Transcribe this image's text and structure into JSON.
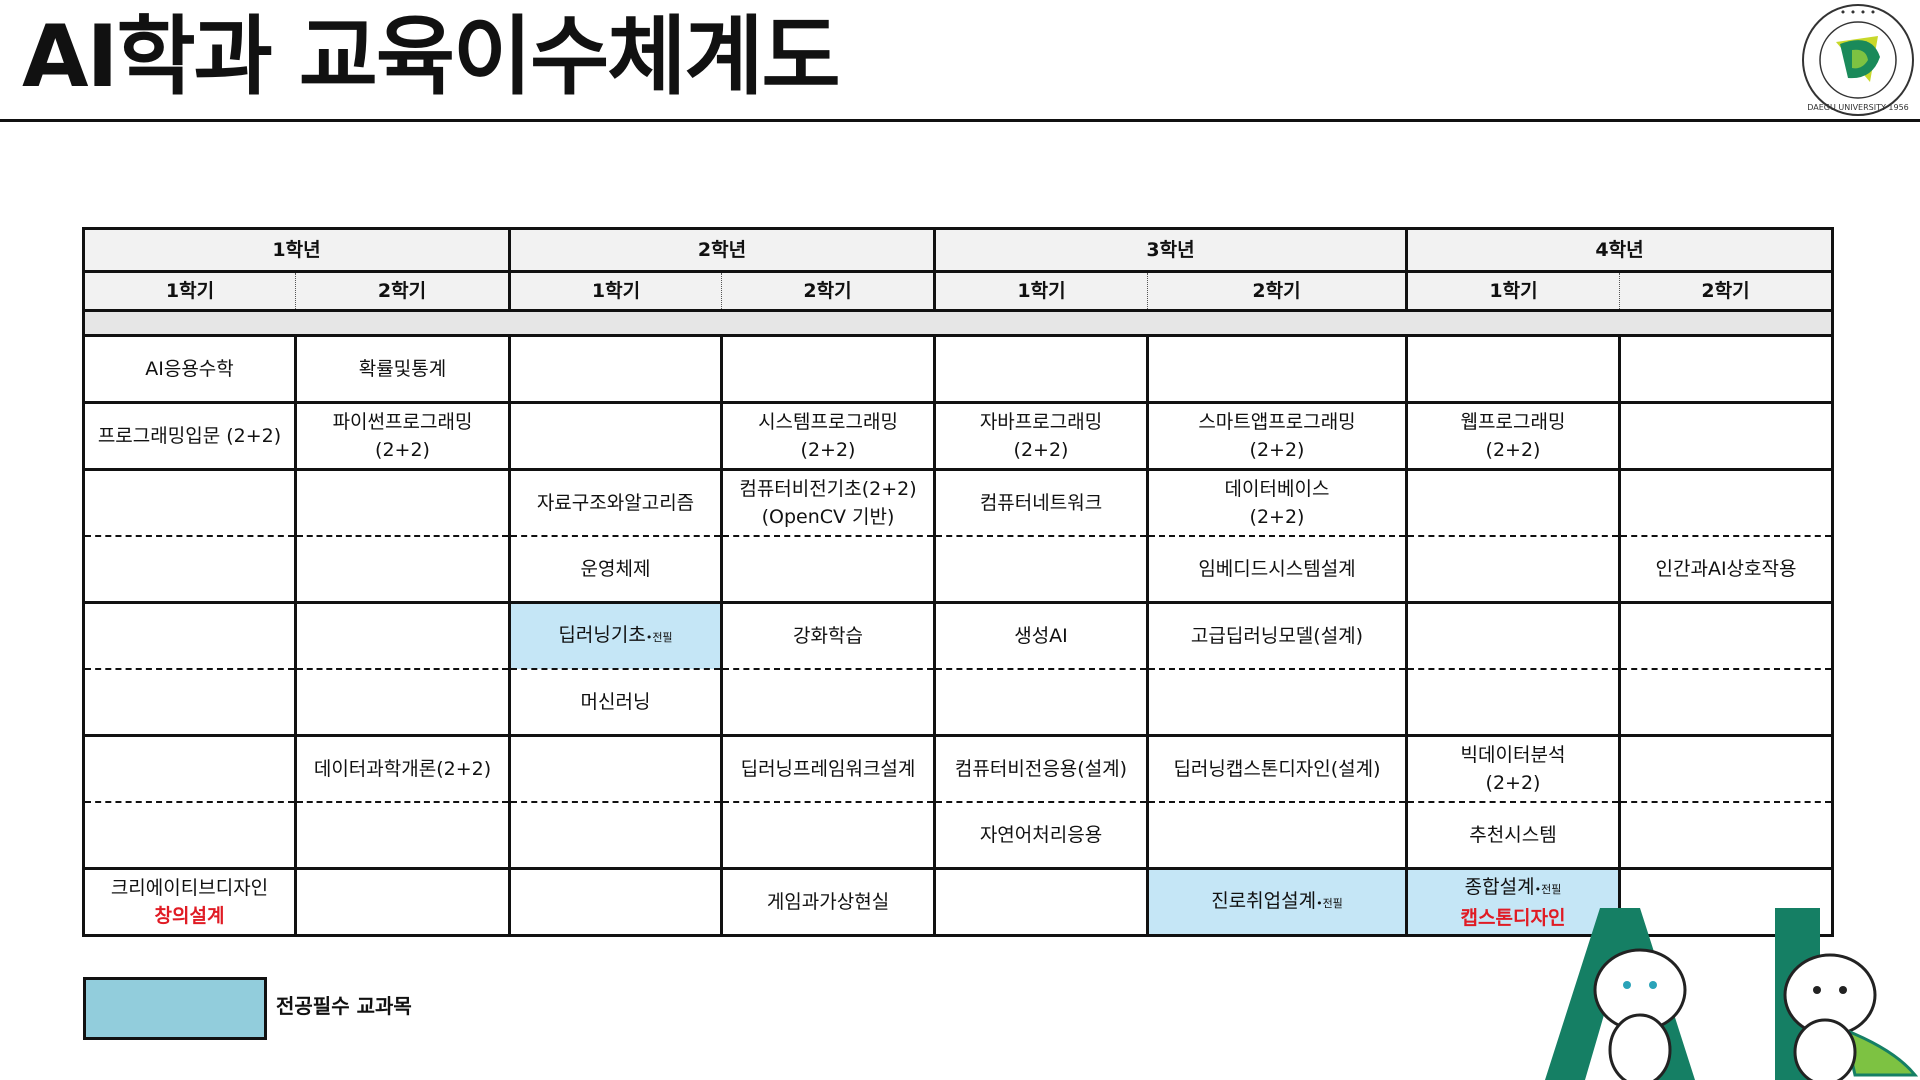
{
  "title": "AI학과 교육이수체계도",
  "logo": {
    "text_top": "대구대학교",
    "text_bottom": "DAEGU UNIVERSITY 1956",
    "color": "#1a8a5a"
  },
  "colors": {
    "required_cell": "#c5e6f6",
    "legend_box": "#92cddc",
    "red_label": "#e01b24",
    "mascot_green": "#157f64"
  },
  "years": [
    "1학년",
    "2학년",
    "3학년",
    "4학년"
  ],
  "semesters": [
    "1학기",
    "2학기",
    "1학기",
    "2학기",
    "1학기",
    "2학기",
    "1학기",
    "2학기"
  ],
  "rows": [
    [
      {
        "lines": [
          "AI응용수학"
        ]
      },
      {
        "lines": [
          "확률및통계"
        ]
      },
      {},
      {},
      {},
      {},
      {},
      {}
    ],
    [
      {
        "lines": [
          "프로그래밍입문 (2+2)"
        ]
      },
      {
        "lines": [
          "파이썬프로그래밍",
          "(2+2)"
        ]
      },
      {},
      {
        "lines": [
          "시스템프로그래밍",
          "(2+2)"
        ]
      },
      {
        "lines": [
          "자바프로그래밍",
          "(2+2)"
        ]
      },
      {
        "lines": [
          "스마트앱프로그래밍",
          "(2+2)"
        ]
      },
      {
        "lines": [
          "웹프로그래밍",
          "(2+2)"
        ]
      },
      {}
    ],
    [
      {},
      {},
      {
        "lines": [
          "자료구조와알고리즘"
        ]
      },
      {
        "lines": [
          "컴퓨터비전기초(2+2)",
          "(OpenCV 기반)"
        ]
      },
      {
        "lines": [
          "컴퓨터네트워크"
        ]
      },
      {
        "lines": [
          "데이터베이스",
          "(2+2)"
        ]
      },
      {},
      {}
    ],
    [
      {},
      {},
      {
        "lines": [
          "운영체제"
        ]
      },
      {},
      {},
      {
        "lines": [
          "임베디드시스템설계"
        ]
      },
      {},
      {
        "lines": [
          "인간과AI상호작용"
        ]
      }
    ],
    [
      {},
      {},
      {
        "lines": [
          "딥러닝기초"
        ],
        "suffix": "•전필",
        "required": true
      },
      {
        "lines": [
          "강화학습"
        ]
      },
      {
        "lines": [
          "생성AI"
        ]
      },
      {
        "lines": [
          "고급딥러닝모델(설계)"
        ]
      },
      {},
      {}
    ],
    [
      {},
      {},
      {
        "lines": [
          "머신러닝"
        ]
      },
      {},
      {},
      {},
      {},
      {}
    ],
    [
      {},
      {
        "lines": [
          "데이터과학개론(2+2)"
        ]
      },
      {},
      {
        "lines": [
          "딥러닝프레임워크설계"
        ]
      },
      {
        "lines": [
          "컴퓨터비전응용(설계)"
        ]
      },
      {
        "lines": [
          "딥러닝캡스톤디자인(설계)"
        ]
      },
      {
        "lines": [
          "빅데이터분석",
          "(2+2)"
        ]
      },
      {}
    ],
    [
      {},
      {},
      {},
      {},
      {
        "lines": [
          "자연어처리응용"
        ]
      },
      {},
      {
        "lines": [
          "추천시스템"
        ]
      },
      {}
    ],
    [
      {
        "lines": [
          "크리에이티브디자인"
        ],
        "red": "창의설계"
      },
      {},
      {},
      {
        "lines": [
          "게임과가상현실"
        ]
      },
      {},
      {
        "lines": [
          "진로취업설계"
        ],
        "suffix": "•전필",
        "required": true
      },
      {
        "lines": [
          "종합설계"
        ],
        "suffix": "•전필",
        "red": "캡스톤디자인",
        "required": true
      },
      {}
    ]
  ],
  "legend": {
    "label": "전공필수 교과목"
  }
}
